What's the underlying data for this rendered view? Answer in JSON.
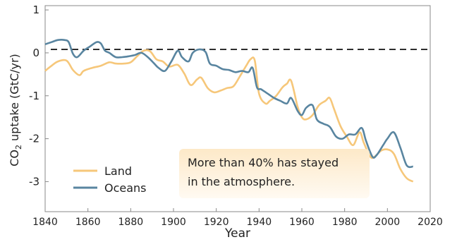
{
  "chart_data": {
    "type": "line",
    "xlabel": "Year",
    "ylabel_main": "CO",
    "ylabel_sub": "2",
    "ylabel_rest": " uptake (GtC/yr)",
    "xlim": [
      1840,
      2020
    ],
    "ylim": [
      -3.7,
      1.1
    ],
    "x_ticks": [
      1840,
      1860,
      1880,
      1900,
      1920,
      1940,
      1960,
      1980,
      2000,
      2020
    ],
    "y_ticks": [
      1,
      0,
      -1,
      -2,
      -3
    ],
    "y_tick_labels": [
      "1",
      "0",
      "-1",
      "-2",
      "-3"
    ],
    "reference_line": {
      "y": 0.08,
      "style": "dashed"
    },
    "grid": false,
    "legend_position": "bottom-left",
    "series": [
      {
        "name": "Land",
        "color": "#f6c77a",
        "x": [
          1840,
          1843,
          1846,
          1850,
          1853,
          1856,
          1858,
          1862,
          1866,
          1870,
          1873,
          1877,
          1880,
          1883,
          1886,
          1889,
          1892,
          1895,
          1898,
          1902,
          1905,
          1908,
          1911,
          1913,
          1916,
          1919,
          1922,
          1925,
          1928,
          1931,
          1934,
          1936,
          1938,
          1940,
          1943,
          1945,
          1948,
          1951,
          1953,
          1955,
          1958,
          1960,
          1962,
          1965,
          1968,
          1971,
          1973,
          1975,
          1978,
          1981,
          1984,
          1987,
          1989,
          1992,
          1994,
          1997,
          2000,
          2003,
          2006,
          2009,
          2012
        ],
        "values": [
          -0.42,
          -0.3,
          -0.2,
          -0.18,
          -0.4,
          -0.52,
          -0.42,
          -0.35,
          -0.3,
          -0.22,
          -0.25,
          -0.25,
          -0.22,
          -0.08,
          0.05,
          0.04,
          -0.15,
          -0.2,
          -0.32,
          -0.28,
          -0.48,
          -0.75,
          -0.62,
          -0.58,
          -0.82,
          -0.92,
          -0.88,
          -0.82,
          -0.78,
          -0.55,
          -0.3,
          -0.15,
          -0.18,
          -0.95,
          -1.18,
          -1.12,
          -1.0,
          -0.8,
          -0.72,
          -0.65,
          -1.25,
          -1.5,
          -1.55,
          -1.45,
          -1.22,
          -1.12,
          -1.05,
          -1.3,
          -1.7,
          -1.95,
          -2.15,
          -1.85,
          -2.1,
          -2.42,
          -2.42,
          -2.28,
          -2.25,
          -2.35,
          -2.7,
          -2.92,
          -3.0
        ]
      },
      {
        "name": "Oceans",
        "color": "#5985a0",
        "x": [
          1840,
          1843,
          1846,
          1849,
          1851,
          1853,
          1855,
          1858,
          1861,
          1864,
          1866,
          1868,
          1870,
          1873,
          1876,
          1879,
          1882,
          1885,
          1888,
          1891,
          1893,
          1896,
          1899,
          1902,
          1904,
          1907,
          1909,
          1912,
          1915,
          1917,
          1920,
          1923,
          1926,
          1929,
          1932,
          1935,
          1937,
          1939,
          1941,
          1944,
          1947,
          1950,
          1953,
          1955,
          1958,
          1960,
          1962,
          1965,
          1967,
          1970,
          1973,
          1976,
          1979,
          1982,
          1985,
          1988,
          1990,
          1993,
          1995,
          1998,
          2000,
          2003,
          2006,
          2009,
          2012
        ],
        "values": [
          0.2,
          0.25,
          0.3,
          0.3,
          0.25,
          -0.02,
          -0.1,
          0.05,
          0.15,
          0.25,
          0.22,
          0.05,
          0.0,
          -0.1,
          -0.1,
          -0.08,
          -0.05,
          0.0,
          -0.1,
          -0.25,
          -0.35,
          -0.42,
          -0.2,
          0.05,
          -0.1,
          -0.2,
          0.0,
          0.08,
          0.02,
          -0.25,
          -0.3,
          -0.38,
          -0.4,
          -0.45,
          -0.42,
          -0.45,
          -0.35,
          -0.8,
          -0.85,
          -0.95,
          -1.05,
          -1.12,
          -1.18,
          -1.05,
          -1.35,
          -1.45,
          -1.28,
          -1.22,
          -1.55,
          -1.65,
          -1.72,
          -1.95,
          -2.0,
          -1.9,
          -1.9,
          -1.75,
          -2.05,
          -2.42,
          -2.38,
          -2.15,
          -2.0,
          -1.85,
          -2.2,
          -2.62,
          -2.65
        ]
      }
    ],
    "annotation_lines": [
      "More than 40% has stayed",
      "in the atmosphere."
    ]
  }
}
